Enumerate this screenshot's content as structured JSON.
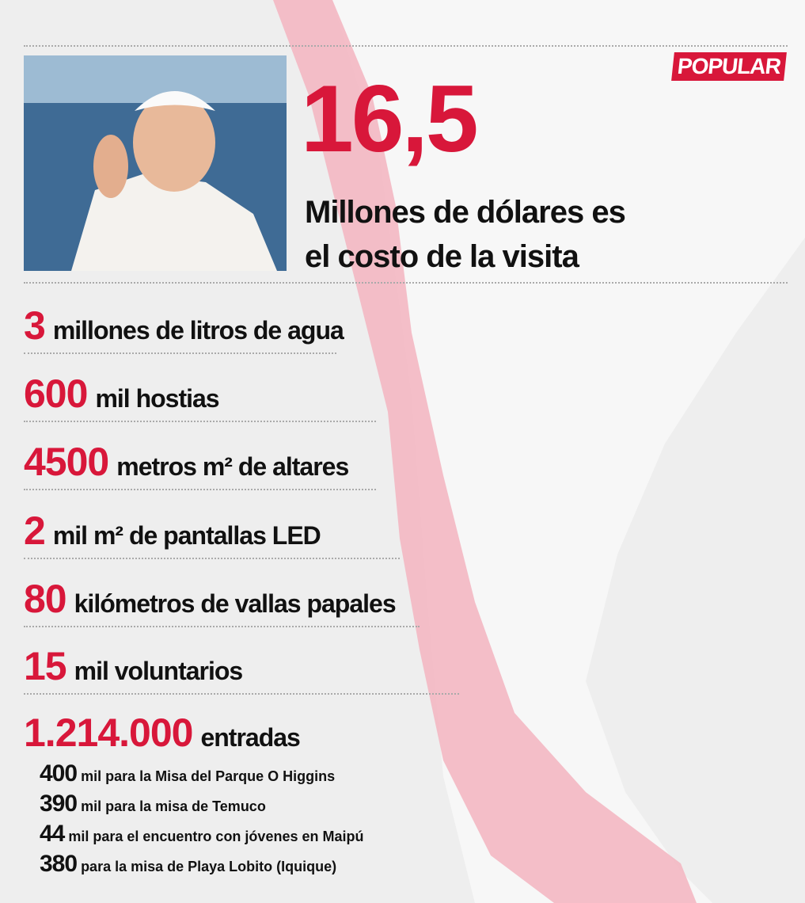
{
  "logo": "POPULAR",
  "headline": {
    "number": "16,5",
    "lines": [
      "Millones de dólares es",
      "el costo de la visita"
    ]
  },
  "stats": [
    {
      "number": "3",
      "text": "millones de litros de agua"
    },
    {
      "number": "600",
      "text": "mil hostias"
    },
    {
      "number": "4500",
      "text": "metros m² de altares"
    },
    {
      "number": "2",
      "text": "mil m² de pantallas LED"
    },
    {
      "number": "80",
      "text": "kilómetros de vallas papales"
    },
    {
      "number": "15",
      "text": "mil voluntarios"
    },
    {
      "number": "1.214.000",
      "text": "entradas"
    }
  ],
  "breakdown": [
    {
      "number": "400",
      "text": "mil para  la Misa del Parque O Higgins"
    },
    {
      "number": "390",
      "text": "mil para la misa de Temuco"
    },
    {
      "number": "44",
      "text": "mil para el encuentro con jóvenes en Maipú"
    },
    {
      "number": "380",
      "text": "para la misa de Playa Lobito (Iquique)"
    }
  ]
}
